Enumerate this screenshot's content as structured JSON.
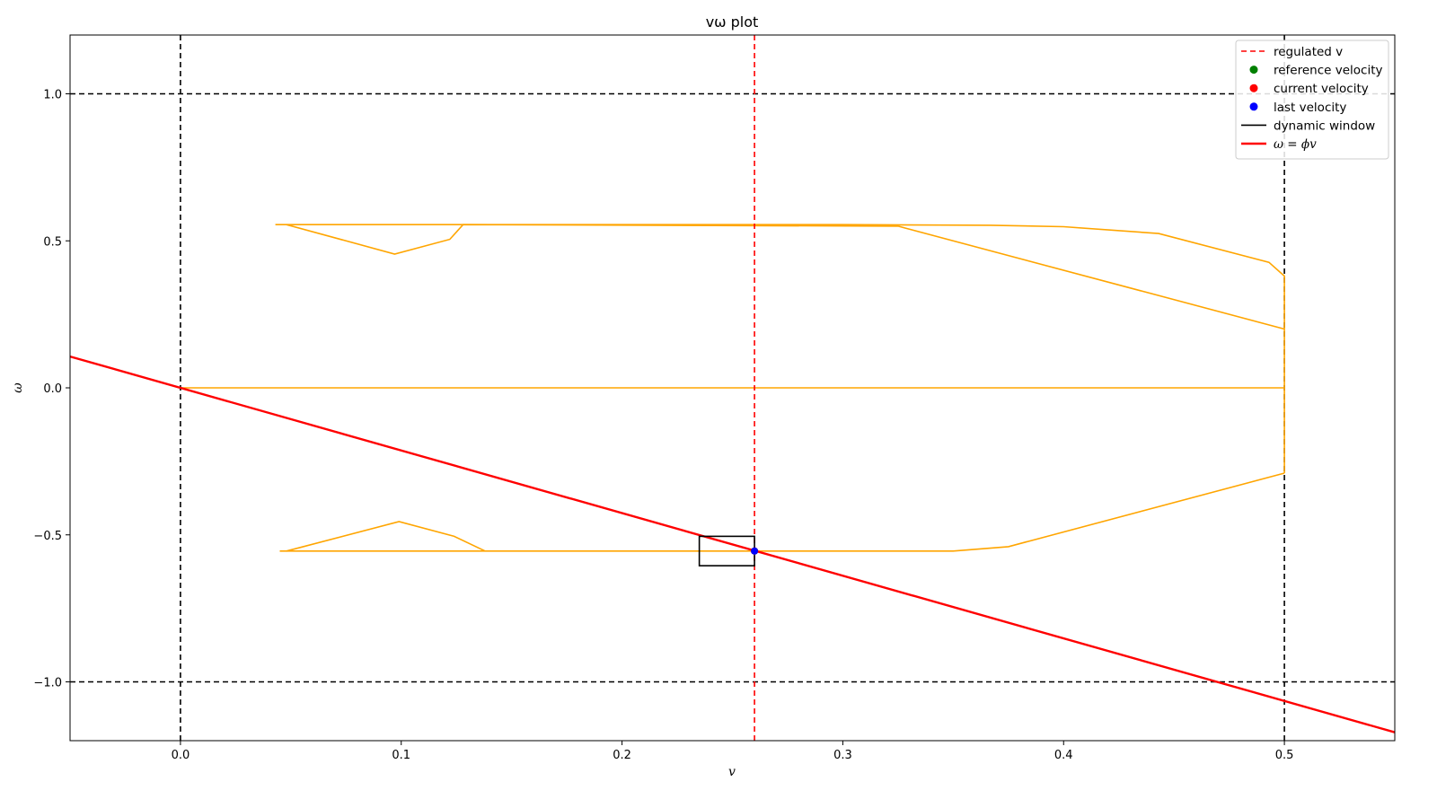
{
  "chart_data": {
    "type": "line",
    "title": "vω plot",
    "xlabel": "v",
    "ylabel": "ω",
    "xlim": [
      -0.05,
      0.55
    ],
    "ylim": [
      -1.2,
      1.2
    ],
    "xticks": [
      0.0,
      0.1,
      0.2,
      0.3,
      0.4,
      0.5
    ],
    "xtick_labels": [
      "0.0",
      "0.1",
      "0.2",
      "0.3",
      "0.4",
      "0.5"
    ],
    "yticks": [
      -1.0,
      -0.5,
      0.0,
      0.5,
      1.0
    ],
    "ytick_labels": [
      "−1.0",
      "−0.5",
      "0.0",
      "0.5",
      "1.0"
    ],
    "grid": false,
    "legend_position": "top-right",
    "limits": {
      "v_min": 0.0,
      "v_max": 0.5,
      "omega_min": -1.0,
      "omega_max": 1.0,
      "color": "#000000"
    },
    "regulated_v": {
      "name": "regulated v",
      "value": 0.26,
      "color": "#ff0000"
    },
    "constraint_boundary": {
      "color": "#ffa500",
      "segments": [
        [
          [
            0.043,
            0.555
          ],
          [
            0.3,
            0.555
          ],
          [
            0.367,
            0.553
          ],
          [
            0.4,
            0.548
          ],
          [
            0.443,
            0.525
          ],
          [
            0.493,
            0.427
          ],
          [
            0.5,
            0.38
          ],
          [
            0.5,
            -0.29
          ]
        ],
        [
          [
            0.048,
            0.555
          ],
          [
            0.097,
            0.455
          ],
          [
            0.122,
            0.505
          ],
          [
            0.128,
            0.555
          ],
          [
            0.325,
            0.55
          ],
          [
            0.5,
            0.2
          ]
        ],
        [
          [
            0.0,
            0.0
          ],
          [
            0.5,
            0.0
          ]
        ],
        [
          [
            0.045,
            -0.555
          ],
          [
            0.35,
            -0.555
          ],
          [
            0.375,
            -0.54
          ],
          [
            0.5,
            -0.29
          ]
        ],
        [
          [
            0.048,
            -0.555
          ],
          [
            0.099,
            -0.455
          ],
          [
            0.124,
            -0.505
          ],
          [
            0.138,
            -0.555
          ]
        ]
      ]
    },
    "line_omega_phi_v": {
      "name": "ω = ϕv",
      "slope": -2.13,
      "intercept": 0.0,
      "color": "#ff0000"
    },
    "dynamic_window": {
      "name": "dynamic window",
      "v_range": [
        0.235,
        0.26
      ],
      "omega_range": [
        -0.605,
        -0.505
      ],
      "color": "#000000"
    },
    "points": [
      {
        "name": "reference velocity",
        "v": 0.26,
        "omega": -0.555,
        "color": "#008000"
      },
      {
        "name": "current velocity",
        "v": 0.26,
        "omega": -0.555,
        "color": "#ff0000"
      },
      {
        "name": "last velocity",
        "v": 0.26,
        "omega": -0.555,
        "color": "#0000ff"
      }
    ],
    "legend": [
      {
        "label": "regulated v",
        "kind": "dashed-line",
        "color": "#ff0000"
      },
      {
        "label": "reference velocity",
        "kind": "marker",
        "color": "#008000"
      },
      {
        "label": "current velocity",
        "kind": "marker",
        "color": "#ff0000"
      },
      {
        "label": "last velocity",
        "kind": "marker",
        "color": "#0000ff"
      },
      {
        "label": "dynamic window",
        "kind": "line",
        "color": "#000000"
      },
      {
        "label": "ω = ϕv",
        "kind": "thick-line",
        "color": "#ff0000"
      }
    ]
  }
}
